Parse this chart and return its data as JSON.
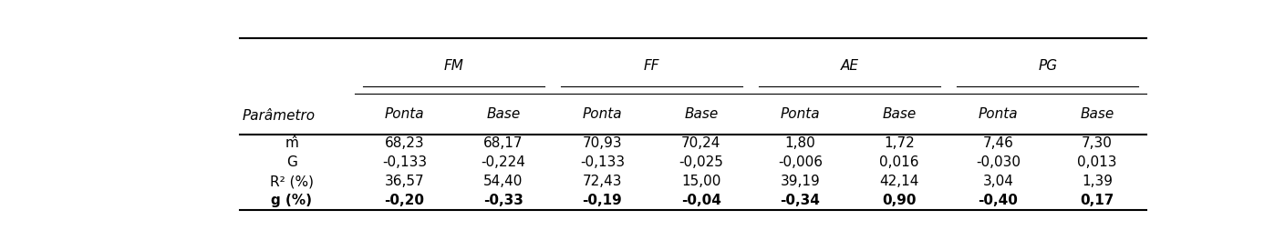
{
  "col_groups": [
    "FM",
    "FF",
    "AE",
    "PG"
  ],
  "sub_cols": [
    "Ponta",
    "Base"
  ],
  "row_labels": [
    "m̂",
    "G",
    "R² (%)",
    "g (%)"
  ],
  "bold_row_labels": [
    false,
    false,
    false,
    true
  ],
  "data": [
    [
      "68,23",
      "68,17",
      "70,93",
      "70,24",
      "1,80",
      "1,72",
      "7,46",
      "7,30"
    ],
    [
      "-0,133",
      "-0,224",
      "-0,133",
      "-0,025",
      "-0,006",
      "0,016",
      "-0,030",
      "0,013"
    ],
    [
      "36,57",
      "54,40",
      "72,43",
      "15,00",
      "39,19",
      "42,14",
      "3,04",
      "1,39"
    ],
    [
      "-0,20",
      "-0,33",
      "-0,19",
      "-0,04",
      "-0,34",
      "0,90",
      "-0,40",
      "0,17"
    ]
  ],
  "bold_data_rows": [
    3
  ],
  "bg_color": "#ffffff",
  "text_color": "#000000",
  "line_color": "#000000",
  "font_size": 11,
  "header_font_size": 11
}
